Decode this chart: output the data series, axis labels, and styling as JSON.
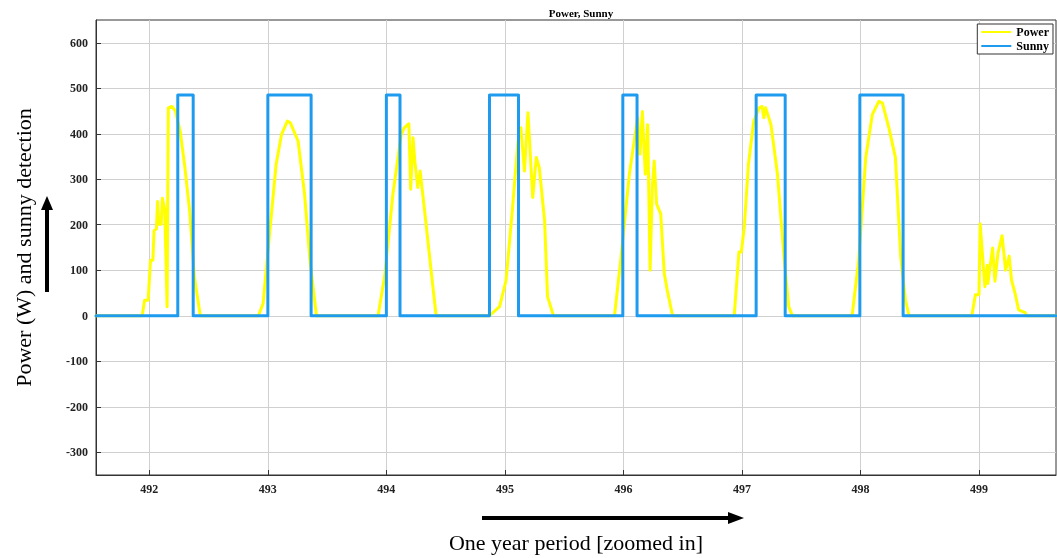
{
  "chart_data": {
    "type": "line",
    "title": "Power, Sunny",
    "xlabel": "One year period [zoomed in]",
    "ylabel": "Power (W) and sunny detection",
    "xlim": [
      491.55,
      499.65
    ],
    "xticks": [
      492,
      493,
      494,
      495,
      496,
      497,
      498,
      499
    ],
    "ylim": [
      -350,
      650
    ],
    "yticks": [
      -300,
      -200,
      -100,
      0,
      100,
      200,
      300,
      400,
      500,
      600
    ],
    "grid": true,
    "legend": "top right",
    "marker": "none",
    "line_style": "solid",
    "series": [
      {
        "name": "Power",
        "color": "#ffff00",
        "x": [
          491.55,
          491.94,
          491.96,
          491.99,
          492.01,
          492.03,
          492.04,
          492.06,
          492.07,
          492.08,
          492.1,
          492.11,
          492.13,
          492.15,
          492.16,
          492.19,
          492.22,
          492.26,
          492.3,
          492.34,
          492.38,
          492.43,
          492.92,
          492.96,
          493.02,
          493.07,
          493.115,
          493.165,
          493.19,
          493.255,
          493.31,
          493.355,
          493.41,
          493.93,
          493.985,
          494.055,
          494.125,
          494.15,
          494.19,
          494.205,
          494.225,
          494.24,
          494.265,
          494.285,
          494.335,
          494.38,
          494.42,
          494.87,
          494.955,
          495.01,
          495.065,
          495.11,
          495.135,
          495.165,
          495.195,
          495.235,
          495.265,
          495.29,
          495.335,
          495.36,
          495.41,
          495.925,
          495.98,
          496.05,
          496.12,
          496.14,
          496.16,
          496.185,
          496.205,
          496.225,
          496.245,
          496.26,
          496.28,
          496.315,
          496.345,
          496.37,
          496.415,
          496.935,
          496.975,
          496.995,
          497.02,
          497.055,
          497.1,
          497.145,
          497.17,
          497.185,
          497.2,
          497.245,
          497.3,
          497.355,
          497.395,
          497.425,
          497.93,
          497.985,
          498.045,
          498.1,
          498.155,
          498.185,
          498.24,
          498.295,
          498.34,
          498.38,
          498.41,
          498.94,
          498.97,
          499.0,
          499.01,
          499.05,
          499.07,
          499.075,
          499.115,
          499.135,
          499.16,
          499.195,
          499.225,
          499.255,
          499.275,
          499.305,
          499.335,
          499.39,
          499.4,
          499.65
        ],
        "values": [
          0,
          0,
          34,
          34,
          122,
          122,
          187,
          191,
          251,
          201,
          201,
          258,
          235,
          20,
          457,
          460,
          450,
          406,
          326,
          231,
          86,
          0,
          0,
          27,
          195,
          333,
          398,
          428,
          424,
          384,
          267,
          122,
          0,
          0,
          86,
          267,
          398,
          413,
          422,
          278,
          391,
          340,
          282,
          318,
          202,
          93,
          0,
          0,
          20,
          78,
          238,
          384,
          413,
          318,
          446,
          260,
          348,
          326,
          209,
          42,
          0,
          0,
          129,
          311,
          435,
          355,
          449,
          311,
          420,
          100,
          289,
          340,
          246,
          224,
          93,
          56,
          0,
          0,
          140,
          140,
          195,
          333,
          428,
          457,
          460,
          435,
          457,
          420,
          311,
          129,
          20,
          0,
          0,
          122,
          348,
          442,
          471,
          468,
          413,
          348,
          129,
          34,
          0,
          0,
          46,
          46,
          202,
          64,
          111,
          71,
          149,
          76,
          137,
          176,
          100,
          131,
          78,
          49,
          13,
          7,
          0,
          0
        ]
      },
      {
        "name": "Sunny",
        "color": "#1e9bef",
        "x": [
          491.55,
          492.24,
          492.24,
          492.37,
          492.37,
          493.0,
          493.0,
          493.365,
          493.365,
          494.0,
          494.0,
          494.115,
          494.115,
          494.87,
          494.87,
          495.115,
          495.115,
          495.995,
          495.995,
          496.115,
          496.115,
          497.12,
          497.12,
          497.365,
          497.365,
          497.995,
          497.995,
          498.36,
          498.36,
          499.65
        ],
        "values": [
          0,
          0,
          485,
          485,
          0,
          0,
          485,
          485,
          0,
          0,
          485,
          485,
          0,
          0,
          485,
          485,
          0,
          0,
          485,
          485,
          0,
          0,
          485,
          485,
          0,
          0,
          485,
          485,
          0,
          0
        ]
      }
    ]
  }
}
